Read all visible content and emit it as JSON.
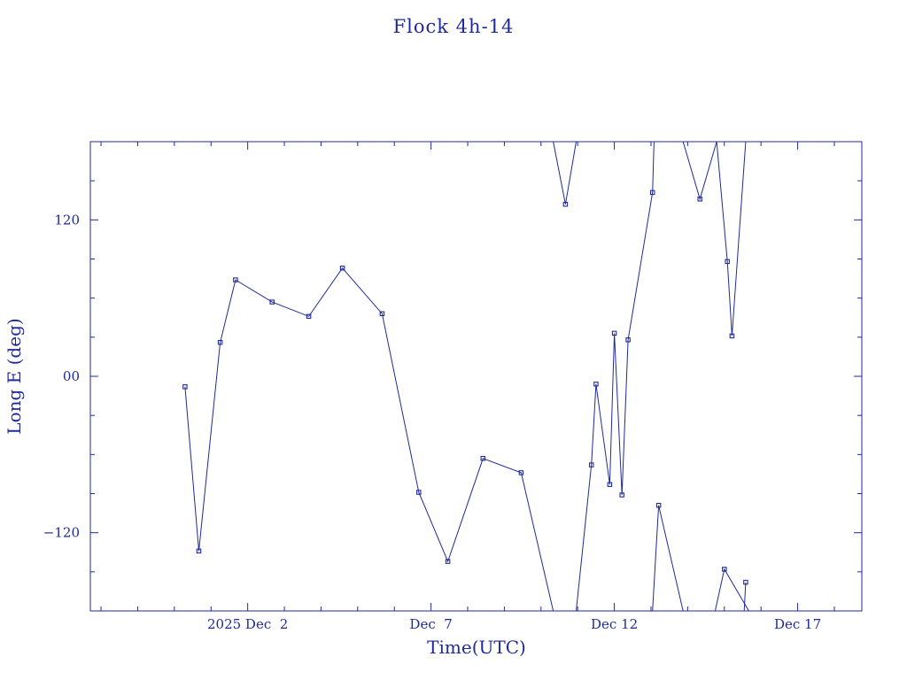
{
  "chart_data": {
    "type": "line",
    "title": "Flock 4h-14",
    "xlabel": "Time(UTC)",
    "ylabel": "Long E (deg)",
    "xlim": [
      "2025-11-27T17:00",
      "2025-12-18T18:00"
    ],
    "ylim": [
      -180,
      180
    ],
    "x_tick_labels": [
      {
        "label": "2025 Dec  2",
        "t": "2025-12-02T00:00"
      },
      {
        "label": "Dec  7",
        "t": "2025-12-07T00:00"
      },
      {
        "label": "Dec 12",
        "t": "2025-12-12T00:00"
      },
      {
        "label": "Dec 17",
        "t": "2025-12-17T00:00"
      }
    ],
    "y_tick_labels": [
      {
        "label": "120",
        "v": 120
      },
      {
        "label": "00",
        "v": 0
      },
      {
        "label": "−120",
        "v": -120
      }
    ],
    "series": [
      {
        "color": "#1f2a9a",
        "marker": "square",
        "segments": [
          [
            [
              "2025-11-30T07:00",
              -8
            ],
            [
              "2025-11-30T16:00",
              -134
            ],
            [
              "2025-12-01T06:00",
              26
            ],
            [
              "2025-12-01T16:00",
              74
            ],
            [
              "2025-12-02T16:00",
              57
            ],
            [
              "2025-12-03T16:00",
              46
            ],
            [
              "2025-12-04T14:00",
              83
            ],
            [
              "2025-12-05T16:00",
              48
            ],
            [
              "2025-12-06T16:00",
              -89
            ],
            [
              "2025-12-07T11:00",
              -142
            ],
            [
              "2025-12-08T10:00",
              -63
            ],
            [
              "2025-12-09T11:00",
              -74
            ],
            [
              "2025-12-10T08:00",
              -180
            ]
          ],
          [
            [
              "2025-12-10T08:00",
              180
            ],
            [
              "2025-12-10T16:00",
              132
            ],
            [
              "2025-12-10T23:00",
              180
            ]
          ],
          [
            [
              "2025-12-10T23:00",
              -180
            ],
            [
              "2025-12-11T09:00",
              -68
            ],
            [
              "2025-12-11T12:00",
              -6
            ],
            [
              "2025-12-11T21:00",
              -83
            ],
            [
              "2025-12-12T00:00",
              33
            ],
            [
              "2025-12-12T05:00",
              -91
            ],
            [
              "2025-12-12T09:00",
              28
            ]
          ],
          [
            [
              "2025-12-12T09:00",
              28
            ],
            [
              "2025-12-13T01:00",
              141
            ],
            [
              "2025-12-13T02:00",
              180
            ]
          ],
          [
            [
              "2025-12-13T01:00",
              -180
            ],
            [
              "2025-12-13T05:00",
              -99
            ],
            [
              "2025-12-13T21:00",
              -180
            ]
          ],
          [
            [
              "2025-12-13T21:00",
              180
            ],
            [
              "2025-12-14T08:00",
              136
            ],
            [
              "2025-12-14T19:00",
              180
            ]
          ],
          [
            [
              "2025-12-14T19:00",
              180
            ],
            [
              "2025-12-15T02:00",
              88
            ],
            [
              "2025-12-15T05:00",
              31
            ],
            [
              "2025-12-15T14:00",
              180
            ]
          ],
          [
            [
              "2025-12-14T18:00",
              -180
            ],
            [
              "2025-12-15T00:00",
              -148
            ],
            [
              "2025-12-15T16:00",
              -180
            ]
          ],
          [
            [
              "2025-12-15T13:00",
              -180
            ],
            [
              "2025-12-15T14:00",
              -158
            ]
          ]
        ],
        "markers": [
          [
            "2025-11-30T07:00",
            -8
          ],
          [
            "2025-11-30T16:00",
            -134
          ],
          [
            "2025-12-01T06:00",
            26
          ],
          [
            "2025-12-01T16:00",
            74
          ],
          [
            "2025-12-02T16:00",
            57
          ],
          [
            "2025-12-03T16:00",
            46
          ],
          [
            "2025-12-04T14:00",
            83
          ],
          [
            "2025-12-05T16:00",
            48
          ],
          [
            "2025-12-06T16:00",
            -89
          ],
          [
            "2025-12-07T11:00",
            -142
          ],
          [
            "2025-12-08T10:00",
            -63
          ],
          [
            "2025-12-09T11:00",
            -74
          ],
          [
            "2025-12-10T16:00",
            132
          ],
          [
            "2025-12-11T09:00",
            -68
          ],
          [
            "2025-12-11T12:00",
            -6
          ],
          [
            "2025-12-11T21:00",
            -83
          ],
          [
            "2025-12-12T00:00",
            33
          ],
          [
            "2025-12-12T05:00",
            -91
          ],
          [
            "2025-12-12T09:00",
            28
          ],
          [
            "2025-12-13T01:00",
            141
          ],
          [
            "2025-12-13T05:00",
            -99
          ],
          [
            "2025-12-14T08:00",
            136
          ],
          [
            "2025-12-15T00:00",
            -148
          ],
          [
            "2025-12-15T02:00",
            88
          ],
          [
            "2025-12-15T05:00",
            31
          ],
          [
            "2025-12-15T14:00",
            -158
          ]
        ]
      }
    ],
    "grid": false,
    "legend": "none"
  }
}
